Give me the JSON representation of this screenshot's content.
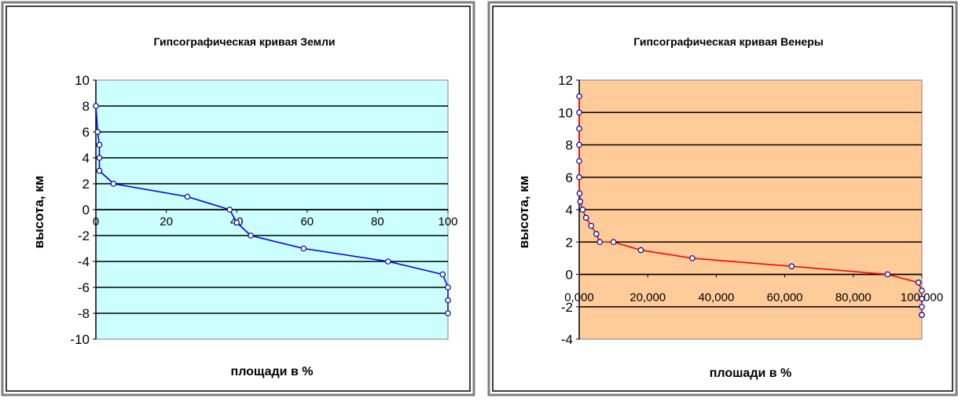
{
  "chart_data": [
    {
      "type": "line",
      "title": "Гипсографическая кривая Земли",
      "xlabel": "площади в %",
      "ylabel": "высота, км",
      "xlim": [
        0,
        100
      ],
      "ylim": [
        -10,
        10
      ],
      "x_ticks": [
        "0",
        "20",
        "40",
        "60",
        "80",
        "100"
      ],
      "y_ticks": [
        "10",
        "8",
        "6",
        "4",
        "2",
        "0",
        "-2",
        "-4",
        "-6",
        "-8",
        "-10"
      ],
      "grid": true,
      "legend": "none",
      "plot_bg": "#ccffff",
      "line_color": "#0000ff",
      "series": [
        {
          "x": [
            0,
            0.5,
            1,
            1,
            1,
            5,
            26,
            38,
            40,
            44,
            59,
            83,
            98.5,
            100,
            100,
            100
          ],
          "y": [
            8,
            6,
            5,
            4,
            3,
            2,
            1,
            0,
            -1,
            -2,
            -3,
            -4,
            -5,
            -6,
            -7,
            -8
          ]
        }
      ]
    },
    {
      "type": "line",
      "title": "Гипсографическая кривая Венеры",
      "xlabel": "плошади в %",
      "ylabel": "высота, км",
      "xlim": [
        0,
        100
      ],
      "ylim": [
        -4,
        12
      ],
      "x_ticks": [
        "0,000",
        "20,000",
        "40,000",
        "60,000",
        "80,000",
        "100,000"
      ],
      "y_ticks": [
        "12",
        "10",
        "8",
        "6",
        "4",
        "2",
        "0",
        "-2",
        "-4"
      ],
      "grid": true,
      "legend": "none",
      "plot_bg": "#ffcc99",
      "line_color": "#ff0000",
      "series": [
        {
          "x": [
            0,
            0,
            0,
            0,
            0,
            0,
            0.1,
            0.3,
            1,
            2,
            3.5,
            5,
            6,
            10,
            18,
            33,
            62,
            90,
            99,
            100,
            100,
            100,
            100,
            100
          ],
          "y": [
            11,
            10,
            9,
            8,
            7,
            6,
            5,
            4.5,
            4,
            3.5,
            3,
            2.5,
            2,
            2,
            1.5,
            1,
            0.5,
            0,
            -0.5,
            -1,
            -1.5,
            -2,
            -2.5,
            -2.5
          ]
        }
      ]
    }
  ]
}
